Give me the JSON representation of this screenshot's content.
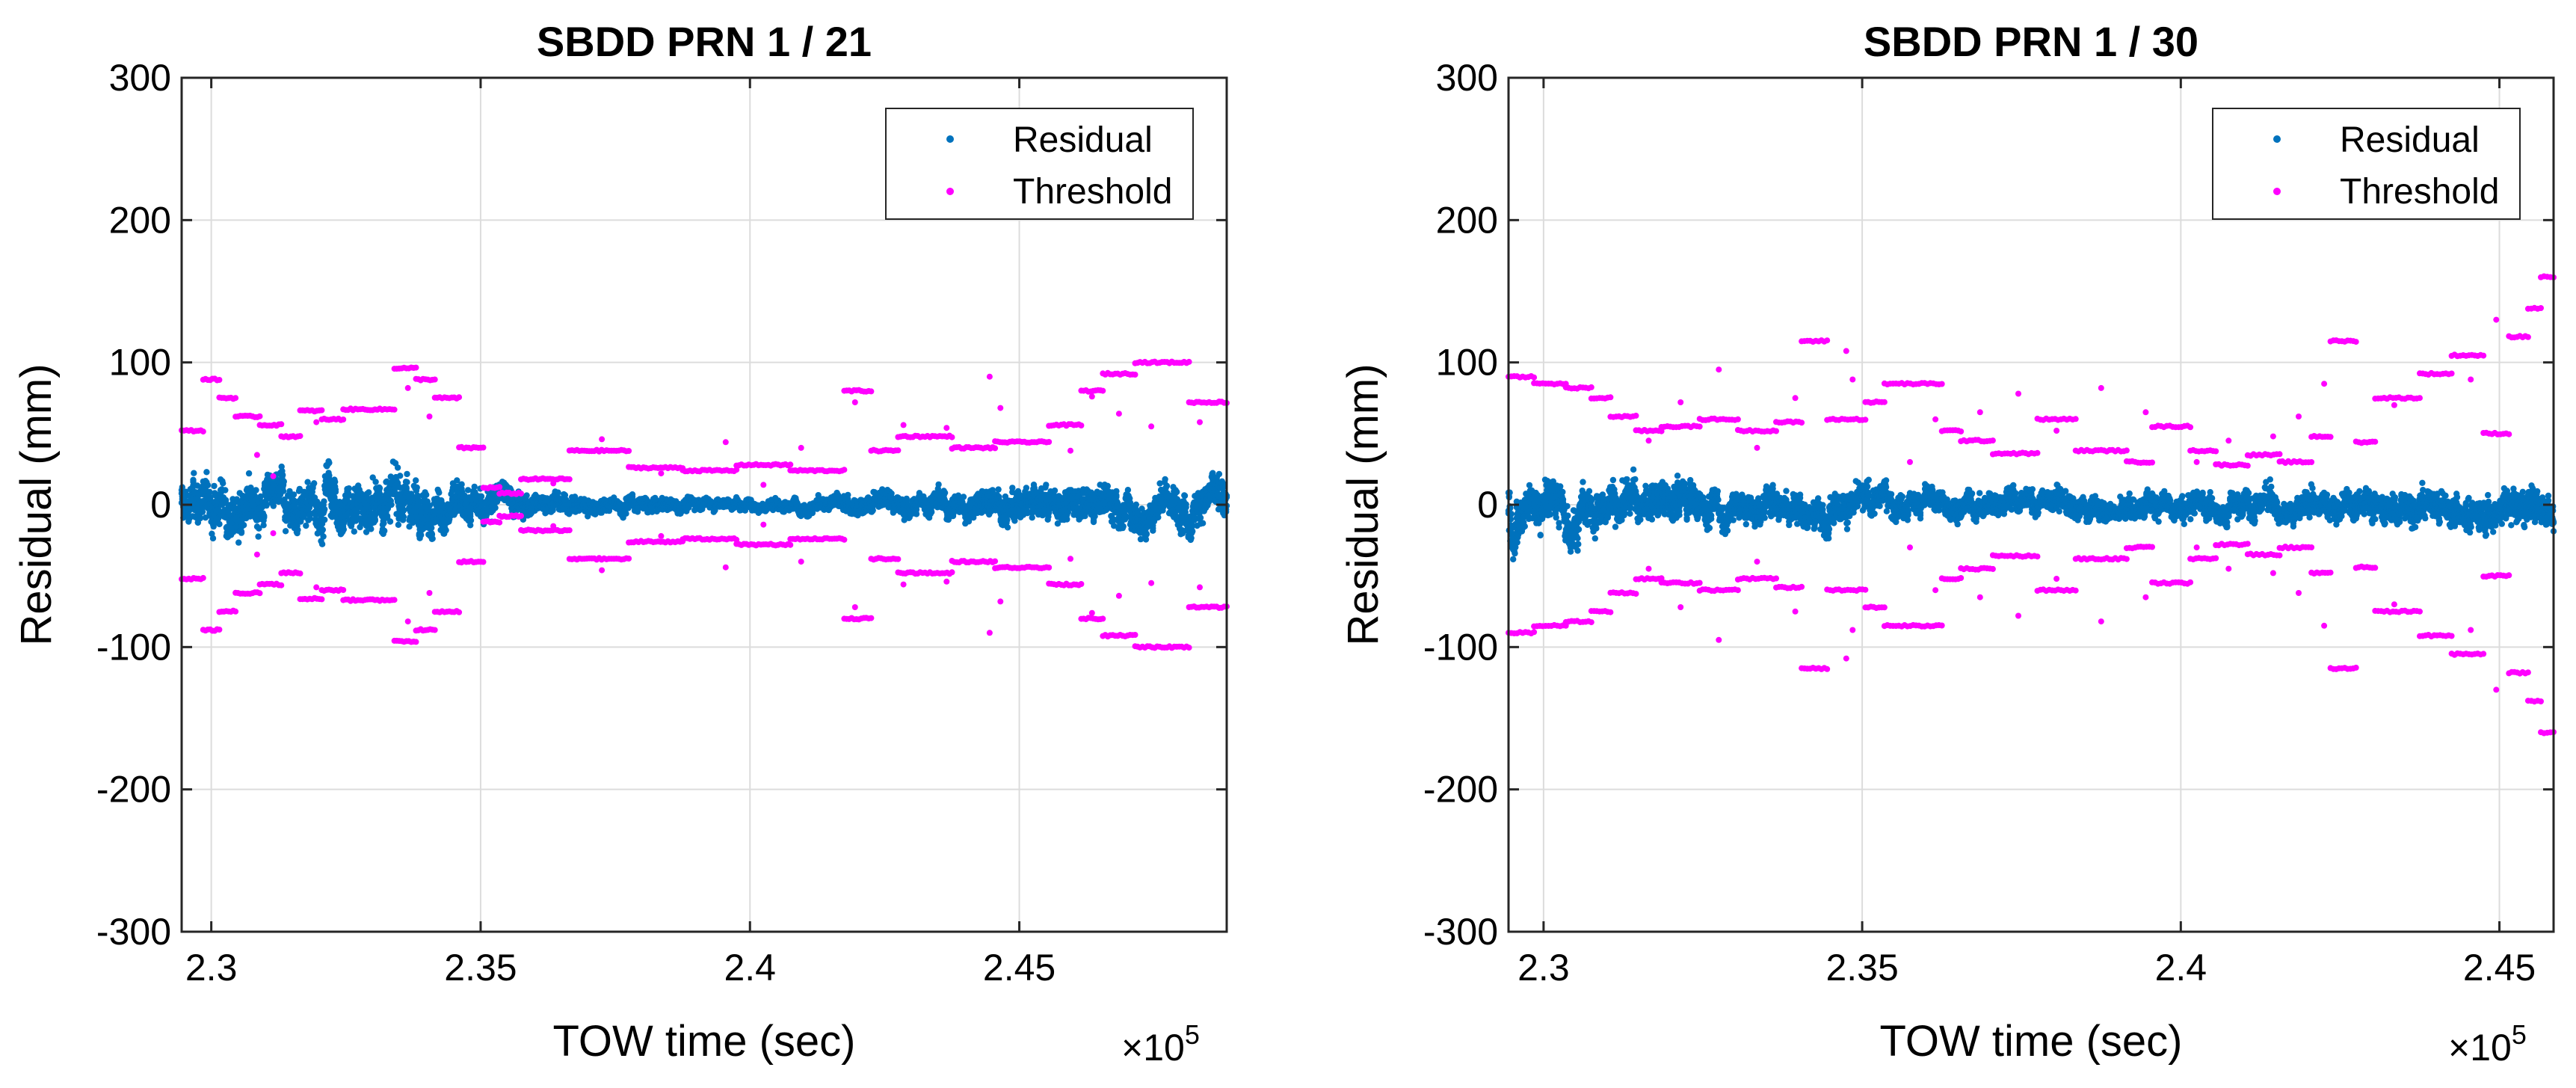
{
  "chart_data": [
    {
      "type": "scatter",
      "title": "SBDD PRN 1 / 21",
      "xlabel": "TOW time (sec)",
      "ylabel": "Residual (mm)",
      "x_multiplier": "×10",
      "x_multiplier_exp": "5",
      "xlim": [
        2.2945,
        2.4885
      ],
      "ylim": [
        -300,
        300
      ],
      "xticks": [
        2.3,
        2.35,
        2.4,
        2.45
      ],
      "xtick_labels": [
        "2.3",
        "2.35",
        "2.4",
        "2.45"
      ],
      "yticks": [
        -300,
        -200,
        -100,
        0,
        100,
        200,
        300
      ],
      "ytick_labels": [
        "-300",
        "-200",
        "-100",
        "0",
        "100",
        "200",
        "300"
      ],
      "grid": true,
      "legend_position": "top-right",
      "series": [
        {
          "name": "Residual",
          "color": "#0072BD",
          "noise_profile": [
            [
              2.2945,
              14
            ],
            [
              2.31,
              13
            ],
            [
              2.335,
              15
            ],
            [
              2.352,
              9
            ],
            [
              2.365,
              5
            ],
            [
              2.4,
              3
            ],
            [
              2.43,
              6
            ],
            [
              2.45,
              9
            ],
            [
              2.47,
              11
            ],
            [
              2.4885,
              12
            ]
          ]
        },
        {
          "name": "Threshold",
          "color": "#FF00FF",
          "symmetric": true,
          "segments": [
            [
              2.2945,
              2.2985,
              52
            ],
            [
              2.2985,
              2.3015,
              88
            ],
            [
              2.3015,
              2.3045,
              75
            ],
            [
              2.3045,
              2.309,
              62
            ],
            [
              2.309,
              2.313,
              56
            ],
            [
              2.313,
              2.3165,
              48
            ],
            [
              2.3165,
              2.3205,
              66
            ],
            [
              2.3205,
              2.3245,
              60
            ],
            [
              2.3245,
              2.334,
              67
            ],
            [
              2.334,
              2.338,
              96
            ],
            [
              2.338,
              2.3415,
              88
            ],
            [
              2.3415,
              2.346,
              75
            ],
            [
              2.346,
              2.3505,
              40
            ],
            [
              2.3505,
              2.3535,
              12
            ],
            [
              2.3535,
              2.3575,
              8
            ],
            [
              2.3575,
              2.3665,
              18
            ],
            [
              2.3665,
              2.3775,
              38
            ],
            [
              2.3775,
              2.3875,
              26
            ],
            [
              2.3875,
              2.3975,
              24
            ],
            [
              2.3975,
              2.4075,
              28
            ],
            [
              2.4075,
              2.4175,
              24
            ],
            [
              2.4175,
              2.4225,
              80
            ],
            [
              2.4225,
              2.4275,
              38
            ],
            [
              2.4275,
              2.4375,
              48
            ],
            [
              2.4375,
              2.4455,
              40
            ],
            [
              2.4455,
              2.4555,
              44
            ],
            [
              2.4555,
              2.4615,
              56
            ],
            [
              2.4615,
              2.4655,
              80
            ],
            [
              2.4655,
              2.4715,
              92
            ],
            [
              2.4715,
              2.4815,
              100
            ],
            [
              2.4815,
              2.4885,
              72
            ]
          ],
          "scatter_points": [
            [
              2.3085,
              35
            ],
            [
              2.3115,
              20
            ],
            [
              2.3195,
              58
            ],
            [
              2.3365,
              82
            ],
            [
              2.3405,
              62
            ],
            [
              2.3635,
              15
            ],
            [
              2.3725,
              46
            ],
            [
              2.3835,
              22
            ],
            [
              2.3955,
              44
            ],
            [
              2.4025,
              14
            ],
            [
              2.4095,
              40
            ],
            [
              2.4195,
              72
            ],
            [
              2.4285,
              56
            ],
            [
              2.4365,
              54
            ],
            [
              2.4445,
              90
            ],
            [
              2.4465,
              68
            ],
            [
              2.4595,
              38
            ],
            [
              2.4635,
              76
            ],
            [
              2.4685,
              64
            ],
            [
              2.4745,
              55
            ],
            [
              2.4835,
              58
            ]
          ]
        }
      ]
    },
    {
      "type": "scatter",
      "title": "SBDD PRN 1 / 30",
      "xlabel": "TOW time (sec)",
      "ylabel": "Residual (mm)",
      "x_multiplier": "×10",
      "x_multiplier_exp": "5",
      "xlim": [
        2.2945,
        2.4585
      ],
      "ylim": [
        -300,
        300
      ],
      "xticks": [
        2.3,
        2.35,
        2.4,
        2.45
      ],
      "xtick_labels": [
        "2.3",
        "2.35",
        "2.4",
        "2.45"
      ],
      "yticks": [
        -300,
        -200,
        -100,
        0,
        100,
        200,
        300
      ],
      "ytick_labels": [
        "-300",
        "-200",
        "-100",
        "0",
        "100",
        "200",
        "300"
      ],
      "grid": true,
      "legend_position": "top-right",
      "series": [
        {
          "name": "Residual",
          "color": "#0072BD",
          "noise_profile": [
            [
              2.2945,
              14
            ],
            [
              2.31,
              12
            ],
            [
              2.33,
              9
            ],
            [
              2.349,
              10
            ],
            [
              2.36,
              7
            ],
            [
              2.39,
              7
            ],
            [
              2.42,
              8
            ],
            [
              2.44,
              9
            ],
            [
              2.4585,
              11
            ]
          ]
        },
        {
          "name": "Threshold",
          "color": "#FF00FF",
          "symmetric": true,
          "segments": [
            [
              2.2945,
              2.2985,
              90
            ],
            [
              2.2985,
              2.3035,
              85
            ],
            [
              2.3035,
              2.3075,
              82
            ],
            [
              2.3075,
              2.3105,
              75
            ],
            [
              2.3105,
              2.3145,
              62
            ],
            [
              2.3145,
              2.3185,
              52
            ],
            [
              2.3185,
              2.3245,
              55
            ],
            [
              2.3245,
              2.3305,
              60
            ],
            [
              2.3305,
              2.3365,
              52
            ],
            [
              2.3365,
              2.3405,
              58
            ],
            [
              2.3405,
              2.3445,
              115
            ],
            [
              2.3445,
              2.3505,
              60
            ],
            [
              2.3505,
              2.3535,
              72
            ],
            [
              2.3535,
              2.3625,
              85
            ],
            [
              2.3625,
              2.3655,
              52
            ],
            [
              2.3655,
              2.3705,
              45
            ],
            [
              2.3705,
              2.3775,
              36
            ],
            [
              2.3775,
              2.3835,
              60
            ],
            [
              2.3835,
              2.3915,
              38
            ],
            [
              2.3915,
              2.3955,
              30
            ],
            [
              2.3955,
              2.4015,
              55
            ],
            [
              2.4015,
              2.4055,
              38
            ],
            [
              2.4055,
              2.4105,
              28
            ],
            [
              2.4105,
              2.4155,
              35
            ],
            [
              2.4155,
              2.4205,
              30
            ],
            [
              2.4205,
              2.4235,
              48
            ],
            [
              2.4235,
              2.4275,
              115
            ],
            [
              2.4275,
              2.4305,
              44
            ],
            [
              2.4305,
              2.4375,
              75
            ],
            [
              2.4375,
              2.4425,
              92
            ],
            [
              2.4425,
              2.4475,
              105
            ],
            [
              2.4475,
              2.4515,
              50
            ],
            [
              2.4515,
              2.4545,
              118
            ],
            [
              2.4545,
              2.4565,
              138
            ],
            [
              2.4565,
              2.4585,
              160
            ]
          ],
          "scatter_points": [
            [
              2.3165,
              45
            ],
            [
              2.3215,
              72
            ],
            [
              2.3275,
              95
            ],
            [
              2.3335,
              40
            ],
            [
              2.3395,
              75
            ],
            [
              2.3475,
              108
            ],
            [
              2.3485,
              88
            ],
            [
              2.3575,
              30
            ],
            [
              2.3615,
              60
            ],
            [
              2.3685,
              65
            ],
            [
              2.3745,
              78
            ],
            [
              2.3805,
              52
            ],
            [
              2.3875,
              82
            ],
            [
              2.3945,
              65
            ],
            [
              2.4025,
              30
            ],
            [
              2.4075,
              45
            ],
            [
              2.4145,
              48
            ],
            [
              2.4185,
              62
            ],
            [
              2.4225,
              85
            ],
            [
              2.4335,
              70
            ],
            [
              2.4455,
              88
            ],
            [
              2.4495,
              130
            ]
          ]
        }
      ]
    }
  ]
}
